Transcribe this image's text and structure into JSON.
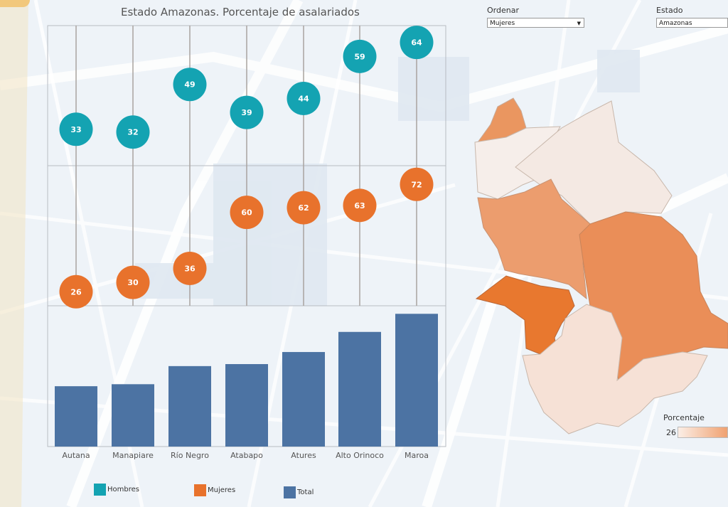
{
  "title": "Estado Amazonas. Porcentaje de asalariados",
  "controls": {
    "sort": {
      "label": "Ordenar",
      "value": "Mujeres"
    },
    "state": {
      "label": "Estado",
      "value": "Amazonas"
    }
  },
  "colors": {
    "hombres": "#14a3b2",
    "mujeres": "#e8722c",
    "total": "#4c73a3",
    "map_high": "#ea8343",
    "map_low": "#f6e9e2"
  },
  "legend": {
    "hombres": "Hombres",
    "mujeres": "Mujeres",
    "total": "Total"
  },
  "map_legend": {
    "title": "Porcentaje",
    "min": "26"
  },
  "chart_data": {
    "type": "scatter",
    "categories": [
      "Autana",
      "Manapiare",
      "Río Negro",
      "Atabapo",
      "Atures",
      "Alto Orinoco",
      "Maroa"
    ],
    "series": [
      {
        "name": "Hombres",
        "values": [
          33,
          32,
          49,
          39,
          44,
          59,
          64
        ]
      },
      {
        "name": "Mujeres",
        "values": [
          26,
          30,
          36,
          60,
          62,
          63,
          72
        ]
      },
      {
        "name": "Total",
        "type": "bar",
        "values": [
          30,
          31,
          40,
          41,
          47,
          57,
          66
        ]
      }
    ],
    "legend_position": "bottom"
  }
}
